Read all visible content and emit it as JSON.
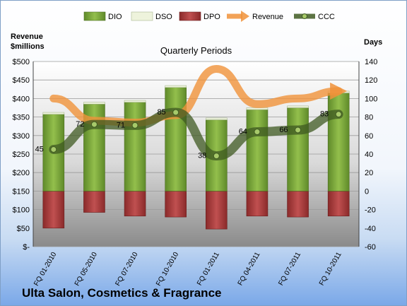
{
  "chart_data": {
    "type": "bar+line",
    "title": "Quarterly Periods",
    "footer_title": "Ulta Salon, Cosmetics & Fragrance",
    "left_axis_label": "Revenue\n$millions",
    "right_axis_label": "Days",
    "categories": [
      "FQ 01-2010",
      "FQ 05-2010",
      "FQ 07-2010",
      "FQ 10-2010",
      "FQ 01-2011",
      "FQ 04-2011",
      "FQ 07-2011",
      "FQ 10-2011"
    ],
    "left_ticks": [
      "$-",
      "$50",
      "$100",
      "$150",
      "$200",
      "$250",
      "$300",
      "$350",
      "$400",
      "$450",
      "$500"
    ],
    "right_ticks": [
      "-60",
      "-40",
      "-20",
      "0",
      "20",
      "40",
      "60",
      "80",
      "100",
      "120",
      "140"
    ],
    "left_ylim": [
      0,
      500
    ],
    "right_ylim": [
      -60,
      140
    ],
    "legend": [
      "DIO",
      "DSO",
      "DPO",
      "Revenue",
      "CCC"
    ],
    "legend_position": "top",
    "grid": true,
    "series": [
      {
        "name": "DIO",
        "axis": "right",
        "type": "bar",
        "color": "#7aa23a",
        "values": [
          83,
          94,
          96,
          112,
          77,
          88,
          90,
          106
        ]
      },
      {
        "name": "DSO",
        "axis": "right",
        "type": "bar",
        "color": "#eef3dc",
        "values": [
          2,
          2,
          2,
          2,
          2,
          2,
          2,
          2
        ]
      },
      {
        "name": "DPO",
        "axis": "right",
        "type": "bar",
        "color": "#a33a3a",
        "values": [
          -40,
          -23,
          -27,
          -28,
          -41,
          -27,
          -28,
          -27
        ]
      },
      {
        "name": "Revenue",
        "axis": "left",
        "type": "line",
        "color": "#f0923a",
        "values": [
          400,
          340,
          335,
          355,
          480,
          385,
          400,
          420
        ]
      },
      {
        "name": "CCC",
        "axis": "right",
        "type": "line",
        "color": "#4a6a2a",
        "values": [
          45,
          72,
          71,
          85,
          38,
          64,
          66,
          83
        ]
      }
    ],
    "data_labels": [
      "45",
      "72",
      "71",
      "85",
      "38",
      "64",
      "66",
      "83"
    ]
  }
}
